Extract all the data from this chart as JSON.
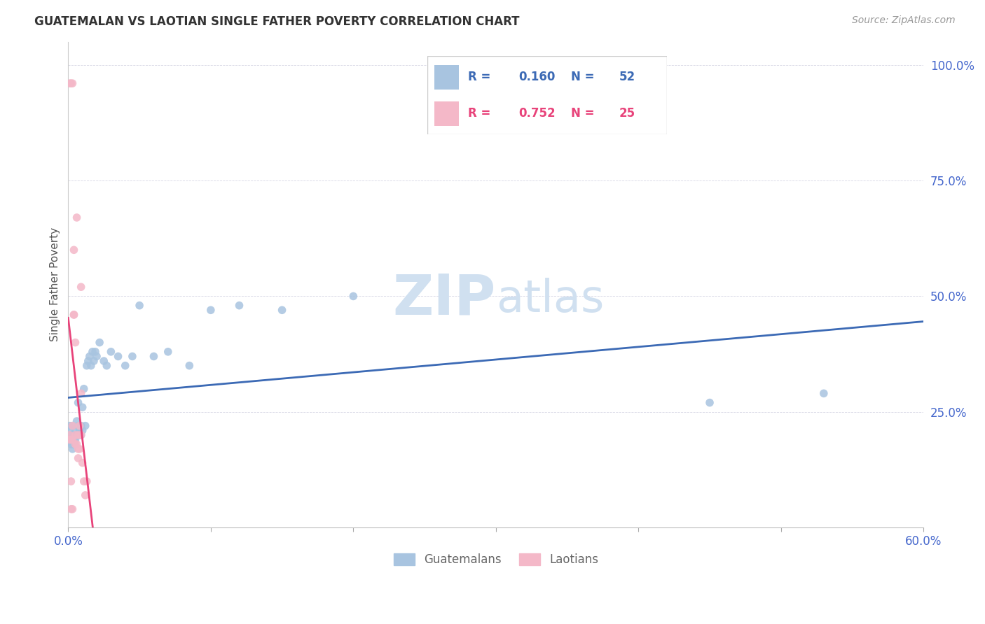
{
  "title": "GUATEMALAN VS LAOTIAN SINGLE FATHER POVERTY CORRELATION CHART",
  "source": "Source: ZipAtlas.com",
  "ylabel": "Single Father Poverty",
  "xlim": [
    0.0,
    0.6
  ],
  "ylim": [
    0.0,
    1.05
  ],
  "guatemalan_color": "#a8c4e0",
  "laotian_color": "#f4b8c8",
  "guatemalan_line_color": "#3c6ab5",
  "laotian_line_color": "#e8437a",
  "R_guatemalan": 0.16,
  "N_guatemalan": 52,
  "R_laotian": 0.752,
  "N_laotian": 25,
  "watermark_color": "#d0e0f0",
  "guatemalans_x": [
    0.001,
    0.001,
    0.002,
    0.002,
    0.002,
    0.003,
    0.003,
    0.003,
    0.003,
    0.004,
    0.004,
    0.004,
    0.005,
    0.005,
    0.005,
    0.006,
    0.006,
    0.007,
    0.007,
    0.008,
    0.008,
    0.009,
    0.009,
    0.01,
    0.01,
    0.011,
    0.012,
    0.013,
    0.014,
    0.015,
    0.016,
    0.017,
    0.018,
    0.019,
    0.02,
    0.022,
    0.025,
    0.027,
    0.03,
    0.035,
    0.04,
    0.045,
    0.05,
    0.06,
    0.07,
    0.085,
    0.1,
    0.12,
    0.15,
    0.2,
    0.45,
    0.53
  ],
  "guatemalans_y": [
    0.22,
    0.21,
    0.2,
    0.19,
    0.18,
    0.22,
    0.2,
    0.18,
    0.17,
    0.2,
    0.19,
    0.18,
    0.21,
    0.2,
    0.19,
    0.23,
    0.2,
    0.27,
    0.22,
    0.21,
    0.2,
    0.22,
    0.2,
    0.26,
    0.21,
    0.3,
    0.22,
    0.35,
    0.36,
    0.37,
    0.35,
    0.38,
    0.36,
    0.38,
    0.37,
    0.4,
    0.36,
    0.35,
    0.38,
    0.37,
    0.35,
    0.37,
    0.48,
    0.37,
    0.38,
    0.35,
    0.47,
    0.48,
    0.47,
    0.5,
    0.27,
    0.29
  ],
  "laotians_x": [
    0.001,
    0.001,
    0.002,
    0.002,
    0.003,
    0.003,
    0.004,
    0.004,
    0.004,
    0.005,
    0.005,
    0.005,
    0.006,
    0.006,
    0.007,
    0.007,
    0.007,
    0.008,
    0.008,
    0.009,
    0.009,
    0.01,
    0.011,
    0.012,
    0.013
  ],
  "laotians_y": [
    0.2,
    0.96,
    0.96,
    0.19,
    0.96,
    0.22,
    0.6,
    0.46,
    0.46,
    0.4,
    0.2,
    0.18,
    0.67,
    0.18,
    0.2,
    0.17,
    0.15,
    0.22,
    0.17,
    0.52,
    0.2,
    0.14,
    0.1,
    0.07,
    0.1
  ],
  "laotian_extra_x": [
    0.001,
    0.002,
    0.002,
    0.003,
    0.003,
    0.009
  ],
  "laotian_extra_y": [
    0.19,
    0.1,
    0.04,
    0.04,
    0.19,
    0.29
  ]
}
